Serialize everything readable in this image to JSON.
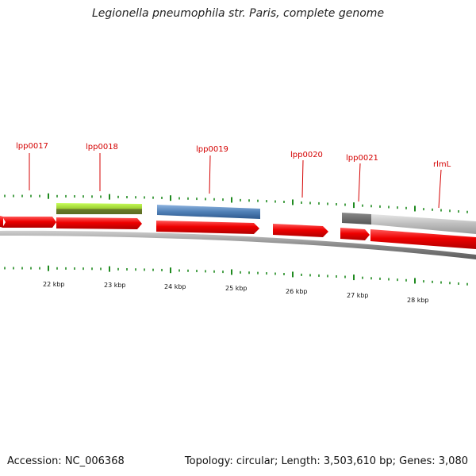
{
  "title": "Legionella pneumophila str. Paris, complete genome",
  "footer": {
    "accession": "Accession: NC_006368",
    "summary": "Topology: circular; Length: 3,503,610 bp; Genes: 3,080"
  },
  "gene_labels": [
    "lpp0017",
    "lpp0018",
    "lpp0019",
    "lpp0020",
    "lpp0021",
    "rlmL"
  ],
  "scale_labels": [
    "22 kbp",
    "23 kbp",
    "24 kbp",
    "25 kbp",
    "26 kbp",
    "27 kbp",
    "28 kbp"
  ],
  "colors": {
    "gene": "#ee0000",
    "green_feature": "#9acd32",
    "blue_feature": "#4f7fb6",
    "gray_feature": "#bdbdbd",
    "tick": "#1f8a1f",
    "label": "#d40000"
  }
}
